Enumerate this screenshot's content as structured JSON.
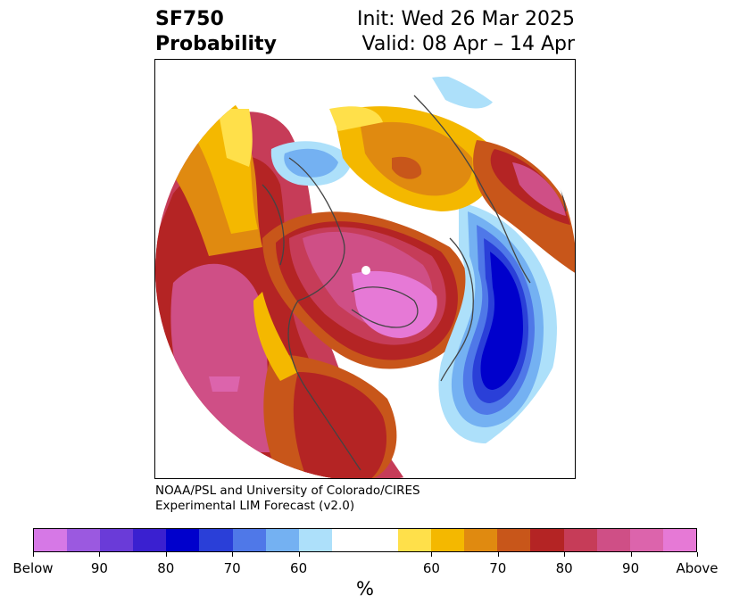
{
  "header": {
    "title_line1": "SF750",
    "title_line2": "Probability",
    "init_text": "Init: Wed 26 Mar 2025",
    "valid_text": "Valid: 08 Apr – 14 Apr"
  },
  "credit": {
    "line1": "NOAA/PSL and University of Colorado/CIRES",
    "line2": "Experimental LIM Forecast (v2.0)"
  },
  "colorbar": {
    "colors": [
      "#d678e6",
      "#9b59e0",
      "#6a3bd8",
      "#3a20d0",
      "#0000cc",
      "#2a3fd8",
      "#4f78e8",
      "#74b1f2",
      "#ade0fa",
      "#ffffff",
      "#ffffff",
      "#ffe04a",
      "#f4b800",
      "#e08a10",
      "#c8561a",
      "#b42424",
      "#c63c58",
      "#cf4f86",
      "#dc64ac",
      "#e679d6"
    ],
    "tick_labels": [
      "Below",
      "90",
      "80",
      "70",
      "60",
      "60",
      "70",
      "80",
      "90",
      "Above"
    ],
    "unit": "%"
  },
  "map": {
    "projection": "polar stereographic, north pole centered",
    "variable": "SF750 probability",
    "features": [
      "warm-above-north-pacific",
      "warm-above-north-america",
      "warm-above-arctic-canada",
      "cold-below-north-atlantic",
      "cold-below-siberia",
      "warm-above-europe"
    ]
  }
}
